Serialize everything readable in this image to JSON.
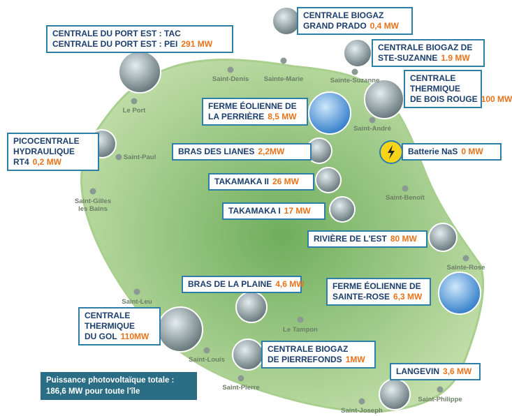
{
  "plants": [
    {
      "lines": [
        "CENTRALE DU PORT EST : TAC",
        "CENTRALE DU PORT EST : PEI"
      ],
      "power": "291 MW"
    },
    {
      "lines": [
        "CENTRALE BIOGAZ",
        "GRAND PRADO"
      ],
      "power": "0,4 MW"
    },
    {
      "lines": [
        "CENTRALE BIOGAZ DE",
        "STE-SUZANNE"
      ],
      "power": "1.9 MW"
    },
    {
      "lines": [
        "CENTRALE",
        "THERMIQUE",
        "DE BOIS ROUGE"
      ],
      "power": "100 MW"
    },
    {
      "lines": [
        "FERME ÉOLIENNE DE",
        "LA PERRIÈRE"
      ],
      "power": "8,5 MW"
    },
    {
      "lines": [
        "PICOCENTRALE",
        "HYDRAULIQUE",
        "RT4"
      ],
      "power": "0,2 MW"
    },
    {
      "lines": [
        "BRAS DES LIANES"
      ],
      "power": "2,2MW"
    },
    {
      "lines": [
        "Batterie NaS"
      ],
      "power": "0 MW"
    },
    {
      "lines": [
        "TAKAMAKA II"
      ],
      "power": "26 MW"
    },
    {
      "lines": [
        "TAKAMAKA I"
      ],
      "power": "17 MW"
    },
    {
      "lines": [
        "RIVIÈRE DE L'EST"
      ],
      "power": "80 MW"
    },
    {
      "lines": [
        "FERME ÉOLIENNE DE",
        "SAINTE-ROSE"
      ],
      "power": "6,3 MW"
    },
    {
      "lines": [
        "BRAS DE LA PLAINE"
      ],
      "power": "4,6 MW"
    },
    {
      "lines": [
        "CENTRALE",
        "THERMIQUE",
        "DU GOL"
      ],
      "power": "110MW"
    },
    {
      "lines": [
        "CENTRALE BIOGAZ",
        "DE PIERREFONDS"
      ],
      "power": "1MW"
    },
    {
      "lines": [
        "LANGEVIN"
      ],
      "power": "3,6 MW"
    }
  ],
  "towns": [
    [
      "Sainte-Marie"
    ],
    [
      "Saint-Denis"
    ],
    [
      "Sainte-Suzanne"
    ],
    [
      "Le Port"
    ],
    [
      "Saint-André"
    ],
    [
      "Saint-Paul"
    ],
    [
      "Saint-Benoît"
    ],
    [
      "Saint-Gilles",
      "les Bains"
    ],
    [
      "Sainte-Rose"
    ],
    [
      "Saint-Leu"
    ],
    [
      "Le Tampon"
    ],
    [
      "Saint-Louis"
    ],
    [
      "Saint-Pierre"
    ],
    [
      "Saint-Philippe"
    ],
    [
      "Saint-Joseph"
    ]
  ],
  "footer": {
    "lines": [
      "Puissance photovoltaïque totale :",
      "186,6 MW pour toute l'île"
    ]
  }
}
